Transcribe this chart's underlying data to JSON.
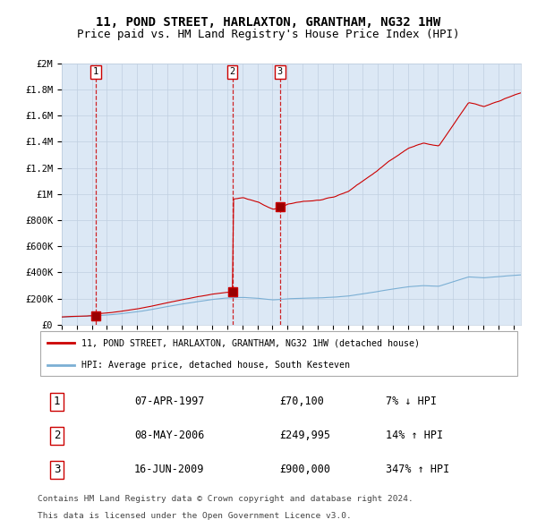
{
  "title": "11, POND STREET, HARLAXTON, GRANTHAM, NG32 1HW",
  "subtitle": "Price paid vs. HM Land Registry's House Price Index (HPI)",
  "title_fontsize": 10,
  "subtitle_fontsize": 9,
  "legend_line1": "11, POND STREET, HARLAXTON, GRANTHAM, NG32 1HW (detached house)",
  "legend_line2": "HPI: Average price, detached house, South Kesteven",
  "sales": [
    {
      "num": 1,
      "date": "07-APR-1997",
      "price": 70100,
      "hpi_pct": "7% ↓ HPI",
      "year_idx": 24
    },
    {
      "num": 2,
      "date": "08-MAY-2006",
      "price": 249995,
      "hpi_pct": "14% ↑ HPI",
      "year_idx": 132
    },
    {
      "num": 3,
      "date": "16-JUN-2009",
      "price": 900000,
      "hpi_pct": "347% ↑ HPI",
      "year_idx": 174
    }
  ],
  "footer1": "Contains HM Land Registry data © Crown copyright and database right 2024.",
  "footer2": "This data is licensed under the Open Government Licence v3.0.",
  "property_color": "#cc0000",
  "hpi_color": "#7bafd4",
  "bg_color": "#dce8f5",
  "grid_color": "#c0cfe0",
  "ylim": [
    0,
    2000000
  ],
  "xlim_start": 1995.0,
  "xlim_end": 2025.5,
  "yticks": [
    0,
    200000,
    400000,
    600000,
    800000,
    1000000,
    1200000,
    1400000,
    1600000,
    1800000,
    2000000
  ],
  "ylabels": [
    "£0",
    "£200K",
    "£400K",
    "£600K",
    "£800K",
    "£1M",
    "£1.2M",
    "£1.4M",
    "£1.6M",
    "£1.8M",
    "£2M"
  ]
}
